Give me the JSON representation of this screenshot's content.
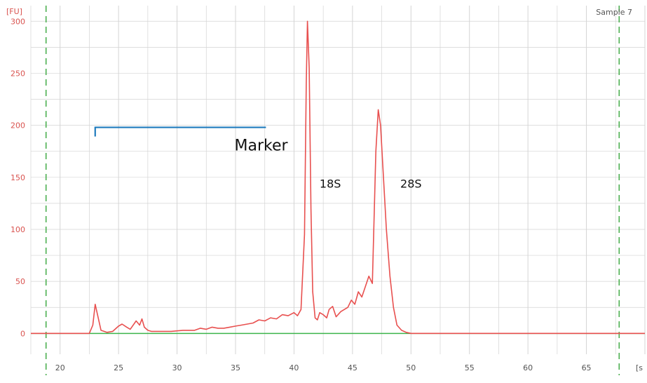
{
  "chart_data": {
    "type": "line",
    "title": "",
    "sample_label": "Sample 7",
    "ylabel": "[FU]",
    "xlabel": "[s",
    "xlim": [
      17.5,
      70
    ],
    "ylim": [
      -20,
      315
    ],
    "x_ticks": [
      20,
      25,
      30,
      35,
      40,
      45,
      50,
      55,
      60,
      65
    ],
    "y_ticks": [
      0,
      50,
      100,
      150,
      200,
      250,
      300
    ],
    "grid": true,
    "colors": {
      "trace": "#e8504f",
      "baseline": "#3cb44b",
      "marker_bracket": "#1f7bbd",
      "axis_labels": "#d9534f",
      "grid": "#d4d4d4",
      "window_lines": "#4caf50"
    },
    "series": [
      {
        "x": [
          17.5,
          22.5,
          22.8,
          23.0,
          23.2,
          23.5,
          24.0,
          24.5,
          25.0,
          25.3,
          25.7,
          26.0,
          26.5,
          26.8,
          27.0,
          27.2,
          27.5,
          27.8,
          28.5,
          29.5,
          30.5,
          31.5,
          32.0,
          32.5,
          33.0,
          33.5,
          34.0,
          34.5,
          35.0,
          35.5,
          36.0,
          36.5,
          37.0,
          37.5,
          38.0,
          38.5,
          39.0,
          39.5,
          40.0,
          40.3,
          40.6,
          40.9,
          41.05,
          41.15,
          41.3,
          41.45,
          41.6,
          41.8,
          42.0,
          42.2,
          42.5,
          42.8,
          43.0,
          43.3,
          43.6,
          44.0,
          44.3,
          44.6,
          44.9,
          45.2,
          45.5,
          45.8,
          46.1,
          46.4,
          46.7,
          47.0,
          47.2,
          47.4,
          47.6,
          47.9,
          48.2,
          48.5,
          48.8,
          49.2,
          49.6,
          50.0,
          51.0,
          55.0,
          60.0,
          65.0,
          70.0
        ],
        "y": [
          0,
          0,
          8,
          28,
          18,
          3,
          1,
          2,
          7,
          9,
          6,
          4,
          12,
          8,
          14,
          6,
          3,
          2,
          2,
          2,
          3,
          3,
          5,
          4,
          6,
          5,
          5,
          6,
          7,
          8,
          9,
          10,
          13,
          12,
          15,
          14,
          18,
          17,
          20,
          17,
          23,
          95,
          240,
          300,
          255,
          120,
          40,
          15,
          13,
          20,
          18,
          15,
          23,
          26,
          16,
          21,
          23,
          25,
          32,
          28,
          40,
          35,
          45,
          55,
          48,
          175,
          215,
          200,
          160,
          100,
          55,
          25,
          8,
          3,
          1,
          0,
          0,
          0,
          0,
          0,
          0
        ]
      }
    ],
    "annotations": [
      {
        "text": "Marker",
        "x_start": 23,
        "x_end": 37.6,
        "y": 198
      },
      {
        "text": "18S",
        "x": 43.1,
        "y": 140
      },
      {
        "text": "28S",
        "x": 50.0,
        "y": 140
      }
    ],
    "window_lines_x": [
      18.8,
      67.8
    ]
  }
}
